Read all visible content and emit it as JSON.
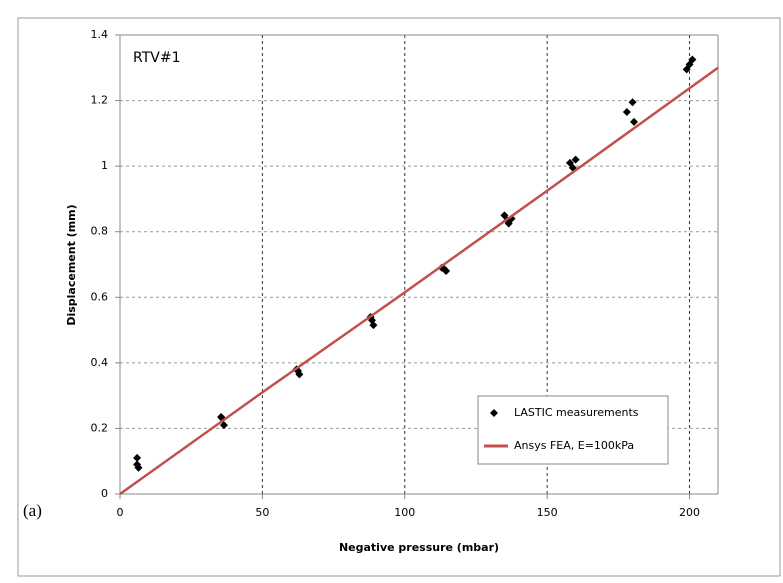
{
  "chart_data": {
    "type": "scatter",
    "annotation": "RTV#1",
    "panel_label": "(a)",
    "x_label": "Negative pressure (mbar)",
    "y_label": "Displacement (mm)",
    "xlim": [
      0,
      210
    ],
    "ylim": [
      0,
      1.4
    ],
    "xticks": [
      0,
      50,
      100,
      150,
      200
    ],
    "yticks": [
      0,
      0.2,
      0.4,
      0.6,
      0.8,
      1,
      1.2,
      1.4
    ],
    "grid": true,
    "legend": "lower right",
    "series": [
      {
        "name": "LASTIC measurements",
        "type": "scatter",
        "color": "#000000",
        "x": [
          6,
          6,
          6.5,
          35.5,
          36,
          36.5,
          62,
          62.5,
          63,
          88,
          88.5,
          89,
          113,
          114,
          114.5,
          135,
          136,
          136.5,
          137.5,
          158,
          159,
          160,
          178,
          180,
          180.5,
          199,
          200,
          201
        ],
        "values": [
          0.11,
          0.09,
          0.08,
          0.235,
          0.23,
          0.21,
          0.38,
          0.375,
          0.365,
          0.54,
          0.53,
          0.515,
          0.69,
          0.685,
          0.68,
          0.85,
          0.835,
          0.825,
          0.84,
          1.01,
          0.995,
          1.02,
          1.165,
          1.195,
          1.135,
          1.295,
          1.31,
          1.325
        ]
      },
      {
        "name": "Ansys FEA, E=100kPa",
        "type": "line",
        "color": "#c0504d",
        "x": [
          0,
          50,
          100,
          150,
          210
        ],
        "values": [
          0,
          0.31,
          0.615,
          0.925,
          1.3
        ]
      }
    ]
  }
}
